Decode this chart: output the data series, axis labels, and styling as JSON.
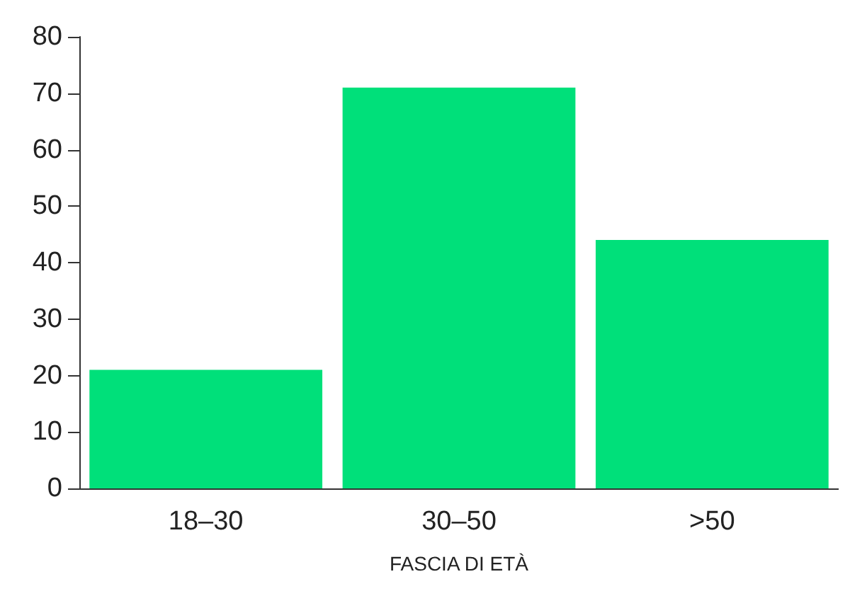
{
  "chart_data": {
    "type": "bar",
    "xlabel": "FASCIA DI ETÀ",
    "categories": [
      "18–30",
      "30–50",
      ">50"
    ],
    "values": [
      21,
      71,
      44
    ],
    "color": "#00e07a",
    "ylim": [
      0,
      80
    ],
    "yticks": [
      0,
      10,
      20,
      30,
      40,
      50,
      60,
      70,
      80
    ],
    "grid": false
  }
}
